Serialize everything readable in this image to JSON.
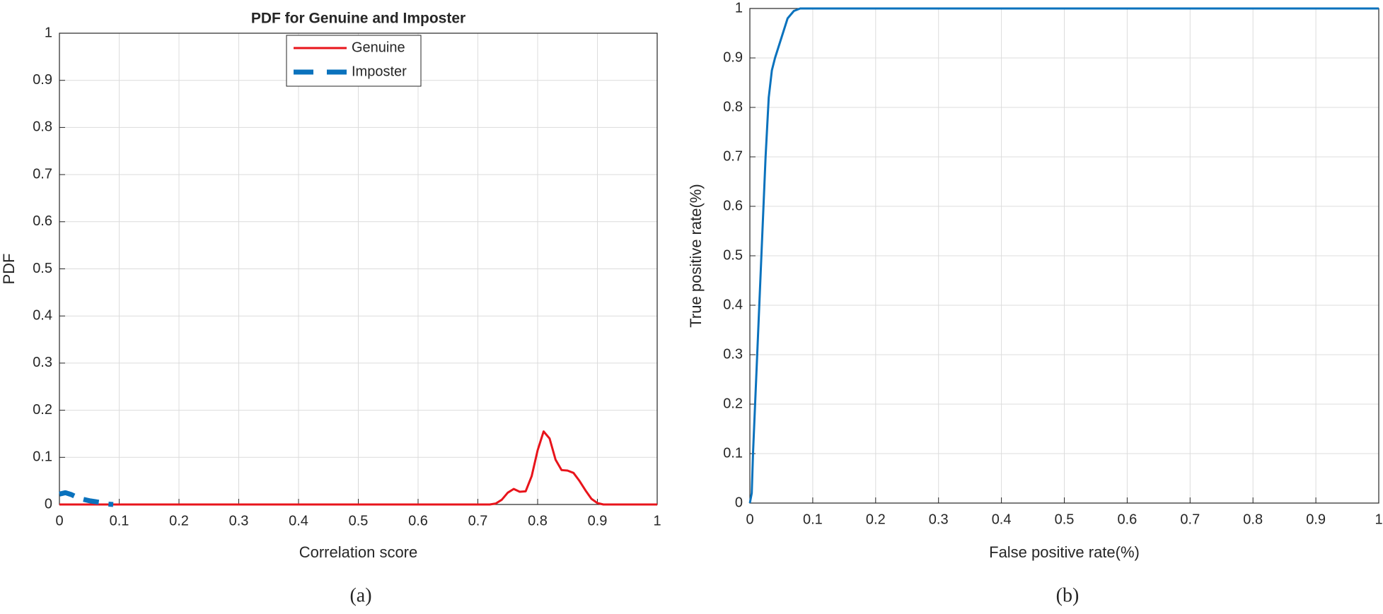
{
  "chart_data": [
    {
      "type": "line",
      "title": "PDF for Genuine and Imposter",
      "xlabel": "Correlation score",
      "ylabel": "PDF",
      "caption": "(a)",
      "xlim": [
        0,
        1
      ],
      "ylim": [
        0,
        1
      ],
      "xticks": [
        0,
        0.1,
        0.2,
        0.3,
        0.4,
        0.5,
        0.6,
        0.7,
        0.8,
        0.9,
        1
      ],
      "yticks": [
        0,
        0.1,
        0.2,
        0.3,
        0.4,
        0.5,
        0.6,
        0.7,
        0.8,
        0.9,
        1
      ],
      "grid": true,
      "legend": "top",
      "series": [
        {
          "name": "Genuine",
          "color": "#e8141b",
          "style": "solid",
          "x": [
            0,
            0.72,
            0.73,
            0.74,
            0.75,
            0.76,
            0.77,
            0.78,
            0.79,
            0.8,
            0.81,
            0.82,
            0.83,
            0.84,
            0.85,
            0.86,
            0.87,
            0.88,
            0.89,
            0.9,
            0.91,
            1
          ],
          "values": [
            0,
            0,
            0.002,
            0.01,
            0.025,
            0.033,
            0.027,
            0.028,
            0.06,
            0.115,
            0.155,
            0.14,
            0.095,
            0.073,
            0.072,
            0.067,
            0.05,
            0.03,
            0.012,
            0.003,
            0,
            0
          ]
        },
        {
          "name": "Imposter",
          "color": "#0a72bd",
          "style": "dashed",
          "x": [
            0,
            0.01,
            0.02,
            0.03,
            0.04,
            0.05,
            0.06,
            0.07,
            0.08,
            0.09
          ],
          "values": [
            0.022,
            0.025,
            0.021,
            0.015,
            0.011,
            0.008,
            0.006,
            0.004,
            0.001,
            0
          ]
        }
      ]
    },
    {
      "type": "line",
      "xlabel": "False positive rate(%)",
      "ylabel": "True positive rate(%)",
      "caption": "(b)",
      "xlim": [
        0,
        1
      ],
      "ylim": [
        0,
        1
      ],
      "xticks": [
        0,
        0.1,
        0.2,
        0.3,
        0.4,
        0.5,
        0.6,
        0.7,
        0.8,
        0.9,
        1
      ],
      "yticks": [
        0,
        0.1,
        0.2,
        0.3,
        0.4,
        0.5,
        0.6,
        0.7,
        0.8,
        0.9,
        1
      ],
      "grid": true,
      "series": [
        {
          "color": "#0a72bd",
          "style": "solid",
          "x": [
            0,
            0.003,
            0.005,
            0.01,
            0.015,
            0.02,
            0.025,
            0.03,
            0.035,
            0.04,
            0.05,
            0.06,
            0.07,
            0.08,
            0.1,
            1
          ],
          "values": [
            0,
            0.02,
            0.1,
            0.25,
            0.4,
            0.55,
            0.7,
            0.82,
            0.875,
            0.9,
            0.94,
            0.98,
            0.995,
            1,
            1,
            1
          ]
        }
      ]
    }
  ]
}
